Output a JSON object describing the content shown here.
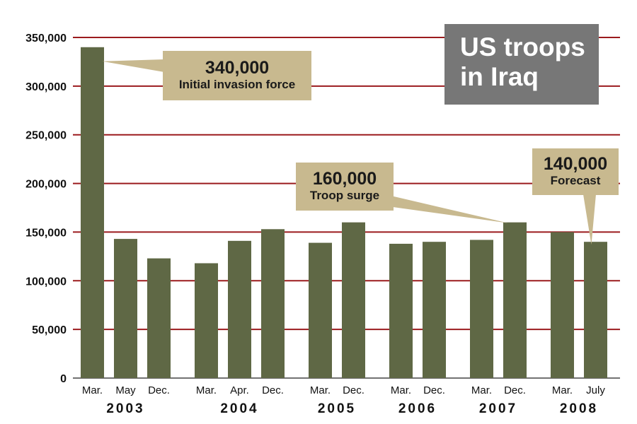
{
  "chart_data": {
    "type": "bar",
    "title": "US troops in Iraq",
    "xlabel": "",
    "ylabel": "",
    "ylim": [
      0,
      350000
    ],
    "grid": true,
    "yticks": [
      "0",
      "50,000",
      "100,000",
      "150,000",
      "200,000",
      "250,000",
      "300,000",
      "350,000"
    ],
    "groups": [
      {
        "year": "2003",
        "categories": [
          "Mar.",
          "May",
          "Dec."
        ],
        "values": [
          340000,
          143000,
          123000
        ]
      },
      {
        "year": "2004",
        "categories": [
          "Mar.",
          "Apr.",
          "Dec."
        ],
        "values": [
          118000,
          141000,
          153000
        ]
      },
      {
        "year": "2005",
        "categories": [
          "Mar.",
          "Dec."
        ],
        "values": [
          139000,
          160000
        ]
      },
      {
        "year": "2006",
        "categories": [
          "Mar.",
          "Dec."
        ],
        "values": [
          138000,
          140000
        ]
      },
      {
        "year": "2007",
        "categories": [
          "Mar.",
          "Dec."
        ],
        "values": [
          142000,
          160000
        ]
      },
      {
        "year": "2008",
        "categories": [
          "Mar.",
          "July"
        ],
        "values": [
          150000,
          140000
        ]
      }
    ],
    "annotations": [
      {
        "value": "340,000",
        "label": "Initial invasion force",
        "target": "2003 Mar."
      },
      {
        "value": "160,000",
        "label": "Troop surge",
        "target": "2007 Dec."
      },
      {
        "value": "140,000",
        "label": "Forecast",
        "target": "2008 July"
      }
    ]
  },
  "colors": {
    "bar": "#5f6845",
    "gridline": "#9b1b1e",
    "axis": "#444444",
    "callout": "#c8b98f",
    "title_box": "#777777",
    "title_text": "#ffffff"
  }
}
